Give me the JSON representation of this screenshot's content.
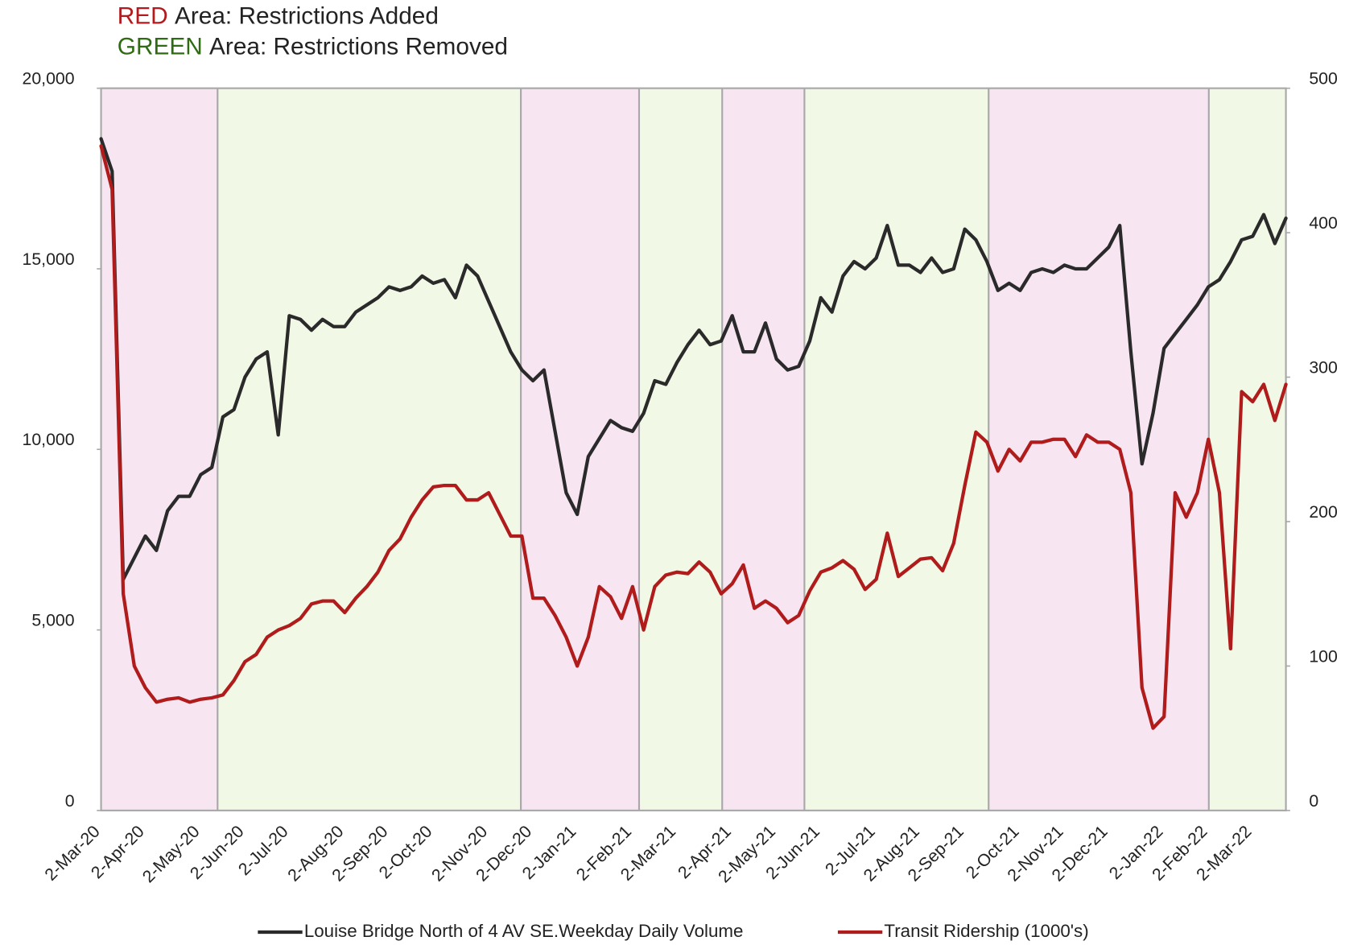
{
  "chart_data": {
    "type": "line",
    "notes": [
      {
        "highlight": "RED",
        "highlight_color": "#b3191d",
        "text": "Area: Restrictions Added"
      },
      {
        "highlight": "GREEN",
        "highlight_color": "#2e6b12",
        "text": "Area: Restrictions Removed"
      }
    ],
    "categories": [
      "2-Mar-20",
      null,
      null,
      null,
      "2-Apr-20",
      null,
      null,
      null,
      null,
      "2-May-20",
      null,
      null,
      null,
      "2-Jun-20",
      null,
      null,
      null,
      "2-Jul-20",
      null,
      null,
      null,
      null,
      "2-Aug-20",
      null,
      null,
      null,
      "2-Sep-20",
      null,
      null,
      null,
      "2-Oct-20",
      null,
      null,
      null,
      null,
      "2-Nov-20",
      null,
      null,
      null,
      "2-Dec-20",
      null,
      null,
      null,
      "2-Jan-21",
      null,
      null,
      null,
      null,
      "2-Feb-21",
      null,
      null,
      null,
      "2-Mar-21",
      null,
      null,
      null,
      null,
      "2-Apr-21",
      null,
      null,
      null,
      "2-May-21",
      null,
      null,
      null,
      "2-Jun-21",
      null,
      null,
      null,
      null,
      "2-Jul-21",
      null,
      null,
      null,
      "2-Aug-21",
      null,
      null,
      null,
      "2-Sep-21",
      null,
      null,
      null,
      null,
      "2-Oct-21",
      null,
      null,
      null,
      "2-Nov-21",
      null,
      null,
      null,
      "2-Dec-21",
      null,
      null,
      null,
      null,
      "2-Jan-22",
      null,
      null,
      null,
      "2-Feb-22",
      null,
      null,
      null,
      "2-Mar-22",
      null,
      null,
      null
    ],
    "series": [
      {
        "name": "Louise Bridge North of 4 AV SE.Weekday Daily Volume",
        "color": "#2a2a2a",
        "axis": "y",
        "values": [
          18600,
          17700,
          6400,
          7000,
          7600,
          7200,
          8300,
          8700,
          8700,
          9300,
          9500,
          10900,
          11100,
          12000,
          12500,
          12700,
          10400,
          13700,
          13600,
          13300,
          13600,
          13400,
          13400,
          13800,
          14000,
          14200,
          14500,
          14400,
          14500,
          14800,
          14600,
          14700,
          14200,
          15100,
          14800,
          14100,
          13400,
          12700,
          12200,
          11900,
          12200,
          10500,
          8800,
          8200,
          9800,
          10300,
          10800,
          10600,
          10500,
          11000,
          11900,
          11800,
          12400,
          12900,
          13300,
          12900,
          13000,
          13700,
          12700,
          12700,
          13500,
          12500,
          12200,
          12300,
          13000,
          14200,
          13800,
          14800,
          15200,
          15000,
          15300,
          16200,
          15100,
          15100,
          14900,
          15300,
          14900,
          15000,
          16100,
          15800,
          15200,
          14400,
          14600,
          14400,
          14900,
          15000,
          14900,
          15100,
          15000,
          15000,
          15300,
          15600,
          16200,
          12700,
          9600,
          11000,
          12800,
          13200,
          13600,
          14000,
          14500,
          14700,
          15200,
          15800,
          15900,
          16500,
          15700,
          16400
        ]
      },
      {
        "name": "Transit Ridership (1000's)",
        "color": "#b01c1c",
        "axis": "y2",
        "values": [
          460,
          430,
          150,
          100,
          85,
          75,
          77,
          78,
          75,
          77,
          78,
          80,
          90,
          103,
          108,
          120,
          125,
          128,
          133,
          143,
          145,
          145,
          137,
          147,
          155,
          165,
          180,
          188,
          203,
          215,
          224,
          225,
          225,
          215,
          215,
          220,
          205,
          190,
          190,
          147,
          147,
          135,
          120,
          100,
          120,
          155,
          148,
          133,
          155,
          125,
          155,
          163,
          165,
          164,
          172,
          165,
          150,
          157,
          170,
          140,
          145,
          140,
          130,
          135,
          152,
          165,
          168,
          173,
          167,
          153,
          160,
          192,
          162,
          168,
          174,
          175,
          166,
          185,
          225,
          262,
          255,
          235,
          250,
          242,
          255,
          255,
          257,
          257,
          245,
          260,
          255,
          255,
          250,
          220,
          85,
          57,
          65,
          220,
          203,
          220,
          257,
          220,
          112,
          290,
          283,
          295,
          270,
          295
        ]
      }
    ],
    "ylim": [
      0,
      20000
    ],
    "yticks": [
      0,
      {
        "value": 5000,
        "label": "5,000"
      },
      {
        "value": 10000,
        "label": "10,000"
      },
      {
        "value": 15000,
        "label": "15,000"
      },
      {
        "value": 20000,
        "label": "20,000"
      }
    ],
    "y2lim": [
      0,
      500
    ],
    "y2ticks": [
      0,
      100,
      200,
      300,
      400,
      500
    ],
    "legend": "bottom"
  }
}
